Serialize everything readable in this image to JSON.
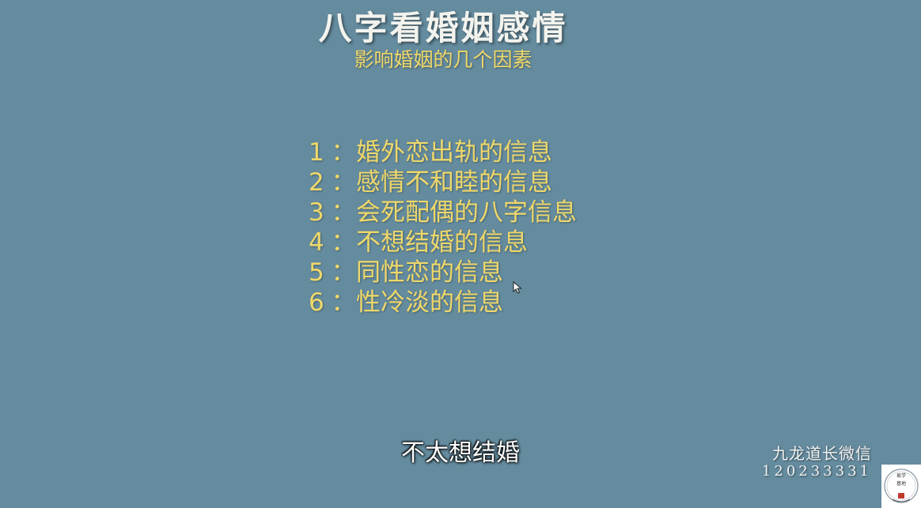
{
  "slide": {
    "title": "八字看婚姻感情",
    "subtitle": "影响婚姻的几个因素",
    "items": [
      {
        "num": "1",
        "sep": "：",
        "text": "婚外恋出轨的信息"
      },
      {
        "num": "2",
        "sep": "：",
        "text": "感情不和睦的信息"
      },
      {
        "num": "3",
        "sep": "：",
        "text": "会死配偶的八字信息"
      },
      {
        "num": "4",
        "sep": "：",
        "text": "不想结婚的信息"
      },
      {
        "num": "5",
        "sep": "：",
        "text": "同性恋的信息"
      },
      {
        "num": "6",
        "sep": "：",
        "text": "性冷淡的信息"
      }
    ]
  },
  "caption": "不太想结婚",
  "watermark": {
    "label": "九龙道长微信",
    "id": "120233331"
  },
  "colors": {
    "background": "#648b9e",
    "title": "#f3f3ee",
    "accent": "#efd86a",
    "caption": "#ffffff"
  },
  "icons": {
    "logo": "seal-logo-icon",
    "cursor": "mouse-pointer-icon"
  }
}
